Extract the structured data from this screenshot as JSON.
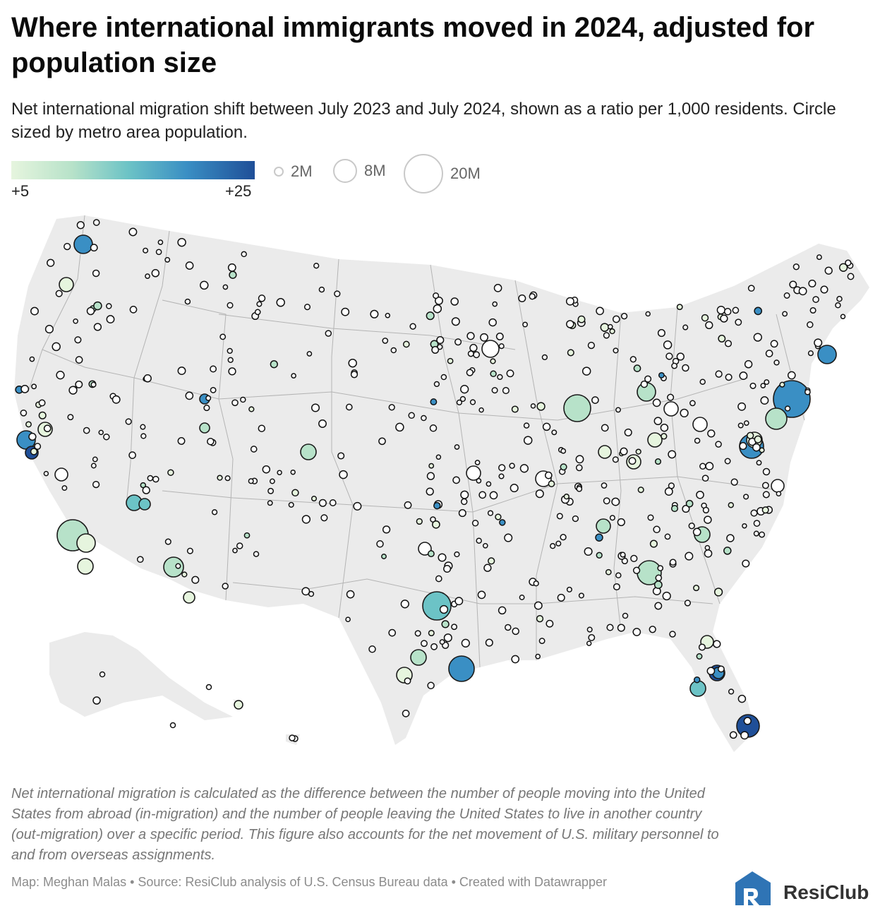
{
  "title": "Where international immigrants moved in 2024, adjusted for population size",
  "subtitle": "Net international migration shift between July 2023 and July 2024, shown as a ratio per 1,000 residents. Circle sized by metro area population.",
  "legend": {
    "color_min_label": "+5",
    "color_max_label": "+25",
    "color_scale": [
      "#e6f5de",
      "#b7e2c9",
      "#6cc3c6",
      "#3a8fc4",
      "#1f4f98"
    ],
    "size_labels": [
      "2M",
      "8M",
      "20M"
    ]
  },
  "note": "Net international migration is calculated as the difference between the number of people moving into the United States from abroad (in-migration) and the number of people leaving the United States to live in another country (out-migration) over a specific period. This figure also accounts for the net movement of U.S. military personnel to and from overseas assignments.",
  "source": "Map: Meghan Malas • Source: ResiClub analysis of U.S. Census Bureau data • Created with Datawrapper",
  "logo": {
    "text": "ResiClub",
    "mark_color": "#2f74b5"
  },
  "colors": {
    "land": "#ebebeb",
    "state_border": "#b4b4b4",
    "small_circle_stroke": "#111111"
  }
}
